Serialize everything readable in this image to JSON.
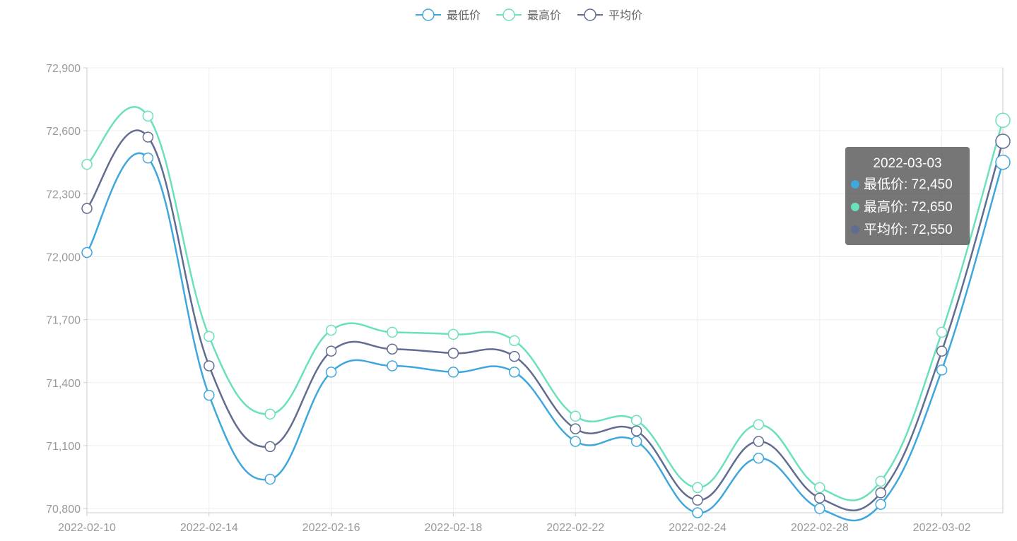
{
  "chart_data": {
    "type": "line",
    "smooth": true,
    "title": "",
    "xlabel": "",
    "ylabel": "",
    "x": [
      "2022-02-10",
      "2022-02-12",
      "2022-02-14",
      "2022-02-15",
      "2022-02-16",
      "2022-02-17",
      "2022-02-18",
      "2022-02-20",
      "2022-02-22",
      "2022-02-23",
      "2022-02-24",
      "2022-02-25",
      "2022-02-28",
      "2022-03-01",
      "2022-03-02",
      "2022-03-03"
    ],
    "x_tick_labels": [
      "2022-02-10",
      "2022-02-14",
      "2022-02-16",
      "2022-02-18",
      "2022-02-22",
      "2022-02-24",
      "2022-02-28",
      "2022-03-02"
    ],
    "x_tick_indices": [
      0,
      2,
      4,
      6,
      8,
      10,
      12,
      14
    ],
    "ylim": [
      70780,
      72900
    ],
    "y_ticks": [
      70800,
      71100,
      71400,
      71700,
      72000,
      72300,
      72600,
      72900
    ],
    "y_tick_labels": [
      "70,800",
      "71,100",
      "71,400",
      "71,700",
      "72,000",
      "72,300",
      "72,600",
      "72,900"
    ],
    "grid": true,
    "legend_position": "top-center",
    "series": [
      {
        "name": "最低价",
        "color": "#3fa7dc",
        "values": [
          72020,
          72470,
          71340,
          70940,
          71450,
          71480,
          71450,
          71450,
          71120,
          71120,
          70780,
          71040,
          70800,
          70820,
          71460,
          72450
        ]
      },
      {
        "name": "最高价",
        "color": "#6be0bd",
        "values": [
          72440,
          72670,
          71620,
          71250,
          71650,
          71640,
          71630,
          71600,
          71240,
          71220,
          70900,
          71200,
          70900,
          70930,
          71640,
          72650
        ]
      },
      {
        "name": "平均价",
        "color": "#626c91",
        "values": [
          72230,
          72570,
          71480,
          71095,
          71550,
          71560,
          71540,
          71525,
          71180,
          71170,
          70840,
          71120,
          70850,
          70875,
          71550,
          72550
        ]
      }
    ]
  },
  "tooltip": {
    "date": "2022-03-03",
    "rows": [
      {
        "label": "最低价: 72,450",
        "color": "#3fa7dc"
      },
      {
        "label": "最高价: 72,650",
        "color": "#6be0bd"
      },
      {
        "label": "平均价: 72,550",
        "color": "#626c91"
      }
    ]
  }
}
